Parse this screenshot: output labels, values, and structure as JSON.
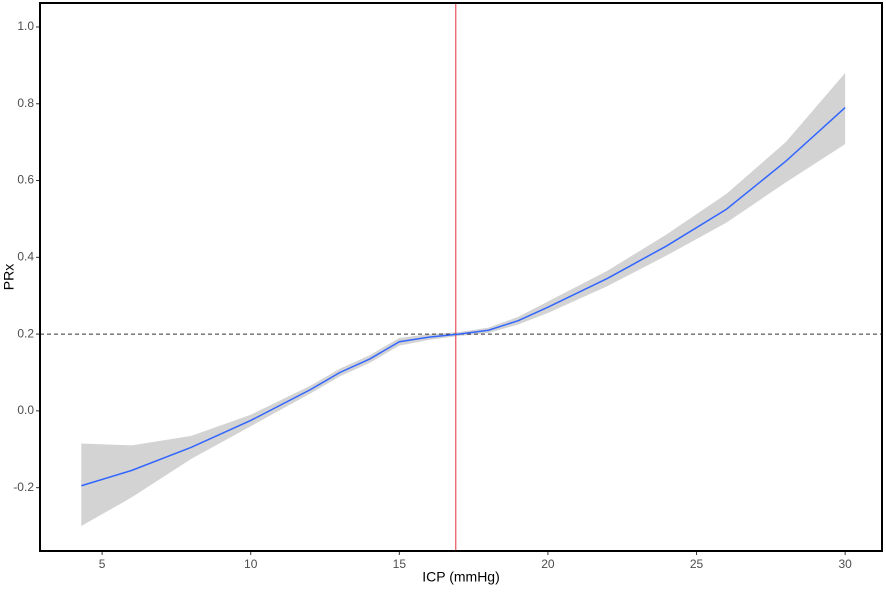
{
  "chart_data": {
    "type": "line",
    "xlabel": "ICP (mmHg)",
    "ylabel": "PRx",
    "x": [
      4.3,
      6,
      8,
      10,
      12,
      13,
      14,
      15,
      16,
      17,
      18,
      19,
      20,
      22,
      24,
      26,
      28,
      30
    ],
    "values": [
      -0.195,
      -0.155,
      -0.095,
      -0.025,
      0.055,
      0.1,
      0.135,
      0.18,
      0.192,
      0.2,
      0.21,
      0.235,
      0.27,
      0.345,
      0.43,
      0.525,
      0.65,
      0.79
    ],
    "lower": [
      -0.3,
      -0.225,
      -0.125,
      -0.04,
      0.045,
      0.09,
      0.125,
      0.17,
      0.185,
      0.195,
      0.203,
      0.225,
      0.255,
      0.325,
      0.405,
      0.49,
      0.595,
      0.695
    ],
    "upper": [
      -0.085,
      -0.09,
      -0.065,
      -0.01,
      0.065,
      0.11,
      0.145,
      0.19,
      0.2,
      0.205,
      0.217,
      0.245,
      0.285,
      0.365,
      0.46,
      0.565,
      0.7,
      0.88
    ],
    "color": "#3366ff",
    "band_color": "#d3d3d3",
    "hline": 0.2,
    "hline_color": "#333333",
    "vline": 16.9,
    "vline_color": "#e0303a",
    "xlim": [
      2.91,
      31.24
    ],
    "ylim": [
      -0.365,
      1.0625
    ],
    "xticks": [
      5,
      10,
      15,
      20,
      25,
      30
    ],
    "yticks": [
      -0.2,
      {
        "value": 0,
        "label": "0.0"
      },
      0.2,
      0.4,
      0.6,
      0.8,
      {
        "value": 1,
        "label": "1.0"
      }
    ],
    "grid": false
  }
}
